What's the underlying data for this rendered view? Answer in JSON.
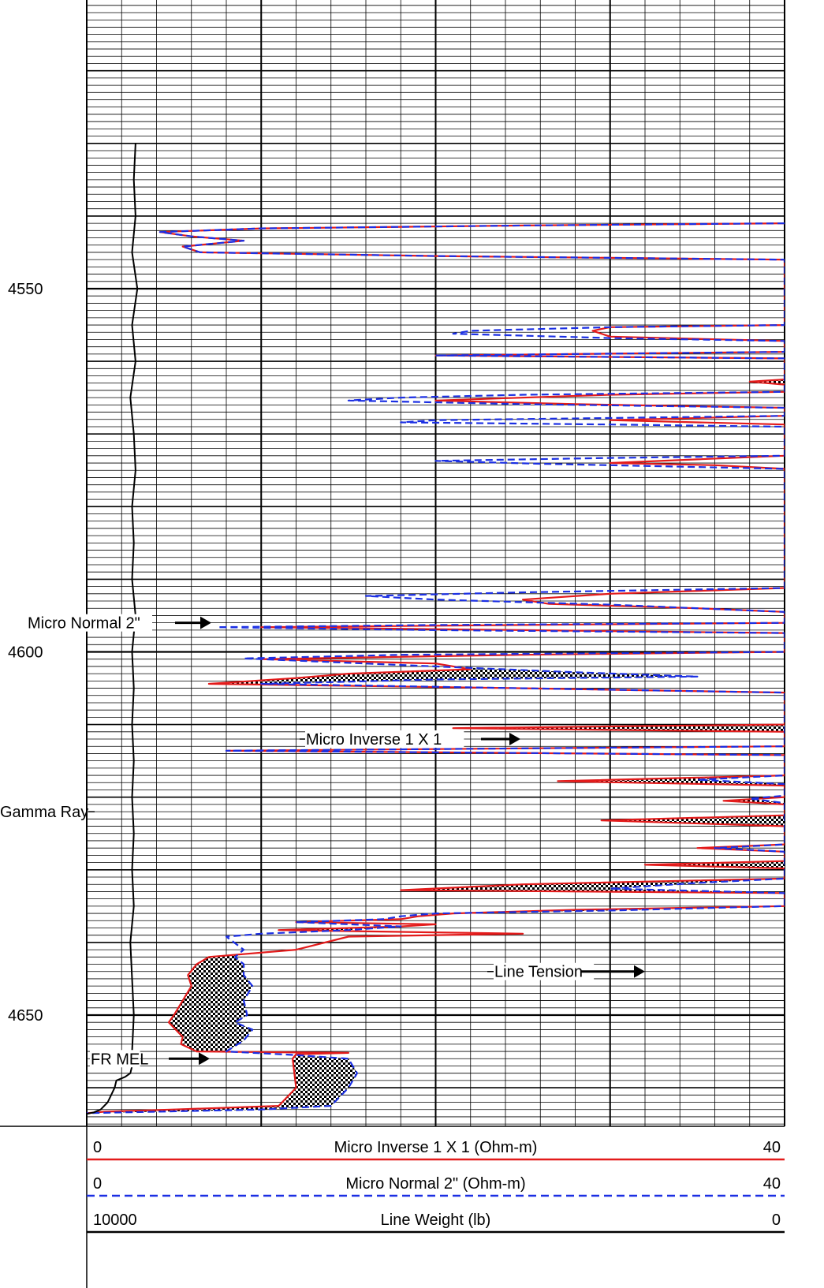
{
  "chart_data": {
    "type": "line",
    "title": "",
    "depth_axis": {
      "ticks": [
        4550,
        4600,
        4650
      ],
      "range": [
        4530,
        4665
      ]
    },
    "scales": [
      {
        "left": "0",
        "label": "Micro Inverse 1 X 1 (Ohm-m)",
        "right": "40",
        "color": "#e31b1b",
        "style": "solid"
      },
      {
        "left": "0",
        "label": "Micro Normal 2\" (Ohm-m)",
        "right": "40",
        "color": "#1b2fe3",
        "style": "dashed"
      },
      {
        "left": "10000",
        "label": "Line Weight (lb)",
        "right": "0",
        "color": "#000000",
        "style": "solid"
      }
    ],
    "annotations": [
      {
        "text": "Micro Normal 2\"",
        "depth": 4596
      },
      {
        "text": "Micro Inverse 1 X 1",
        "depth": 4612
      },
      {
        "text": "Gamma Ray",
        "depth": 4622
      },
      {
        "text": "Line Tension",
        "depth": 4644
      },
      {
        "text": "FR MEL",
        "depth": 4656
      }
    ],
    "series": [
      {
        "name": "Micro Inverse 1 X 1",
        "color": "#e31b1b",
        "points": [
          [
            4541,
            40
          ],
          [
            4541.3,
            25
          ],
          [
            4541.7,
            10
          ],
          [
            4542.2,
            4.2
          ],
          [
            4542.8,
            6
          ],
          [
            4543.4,
            9
          ],
          [
            4544.2,
            5.5
          ],
          [
            4545,
            6.5
          ],
          [
            4545.5,
            20
          ],
          [
            4546,
            40
          ],
          [
            4555,
            40
          ],
          [
            4555.3,
            30
          ],
          [
            4555.8,
            29
          ],
          [
            4556.6,
            30
          ],
          [
            4557.2,
            40
          ],
          [
            4558.7,
            40
          ],
          [
            4559.2,
            20
          ],
          [
            4559.6,
            40
          ],
          [
            4562.5,
            40
          ],
          [
            4562.8,
            38
          ],
          [
            4563.2,
            40
          ],
          [
            4564.2,
            40
          ],
          [
            4564.6,
            30
          ],
          [
            4565.4,
            20
          ],
          [
            4565.9,
            28
          ],
          [
            4566.4,
            40
          ],
          [
            4567.5,
            40
          ],
          [
            4568.1,
            30
          ],
          [
            4568.7,
            40
          ],
          [
            4573,
            40
          ],
          [
            4573.5,
            35
          ],
          [
            4574,
            30
          ],
          [
            4574.3,
            36
          ],
          [
            4574.8,
            40
          ],
          [
            4591.2,
            40
          ],
          [
            4592,
            30
          ],
          [
            4592.8,
            25
          ],
          [
            4593.4,
            26.5
          ],
          [
            4594,
            35
          ],
          [
            4594.5,
            40
          ],
          [
            4596,
            40
          ],
          [
            4596.3,
            25
          ],
          [
            4596.6,
            10
          ],
          [
            4597,
            25
          ],
          [
            4597.4,
            40
          ],
          [
            4600,
            40
          ],
          [
            4600.4,
            25
          ],
          [
            4601,
            10
          ],
          [
            4601.6,
            20
          ],
          [
            4602.4,
            22
          ],
          [
            4603,
            15
          ],
          [
            4603.6,
            12
          ],
          [
            4604.4,
            7
          ],
          [
            4605,
            25
          ],
          [
            4605.6,
            40
          ],
          [
            4610,
            40
          ],
          [
            4610.5,
            21
          ],
          [
            4611,
            40
          ],
          [
            4613,
            40
          ],
          [
            4613.6,
            8
          ],
          [
            4614.2,
            40
          ],
          [
            4617,
            40
          ],
          [
            4617.8,
            27
          ],
          [
            4618.4,
            40
          ],
          [
            4620,
            40
          ],
          [
            4620.5,
            36.5
          ],
          [
            4621,
            40
          ],
          [
            4622.5,
            40
          ],
          [
            4623.2,
            29.5
          ],
          [
            4624,
            40
          ],
          [
            4626.5,
            40
          ],
          [
            4627,
            35
          ],
          [
            4627.5,
            40
          ],
          [
            4628.8,
            40
          ],
          [
            4629.3,
            32
          ],
          [
            4629.8,
            40
          ],
          [
            4631.2,
            40
          ],
          [
            4632,
            25
          ],
          [
            4632.8,
            18
          ],
          [
            4633.2,
            40
          ],
          [
            4635,
            40
          ],
          [
            4635.5,
            28
          ],
          [
            4636,
            21
          ],
          [
            4636.4,
            19
          ],
          [
            4636.8,
            18
          ],
          [
            4637.2,
            12
          ],
          [
            4637.5,
            20
          ],
          [
            4637.8,
            18
          ],
          [
            4638.3,
            11
          ],
          [
            4638.8,
            25
          ],
          [
            4639.2,
            15
          ],
          [
            4641,
            12
          ],
          [
            4642,
            7
          ],
          [
            4643,
            6.3
          ],
          [
            4644.5,
            5.8
          ],
          [
            4646,
            6
          ],
          [
            4648,
            5.5
          ],
          [
            4650,
            5
          ],
          [
            4651,
            4.7
          ],
          [
            4653,
            5.5
          ],
          [
            4654,
            5.4
          ],
          [
            4655,
            6.3
          ],
          [
            4655.2,
            15
          ],
          [
            4655.4,
            12
          ],
          [
            4656,
            11.8
          ],
          [
            4660,
            12
          ],
          [
            4662.5,
            11
          ],
          [
            4663,
            5
          ],
          [
            4663.3,
            1
          ],
          [
            4663.5,
            0
          ]
        ]
      },
      {
        "name": "Micro Normal 2\"",
        "color": "#1b2fe3",
        "points": [
          [
            4541,
            40
          ],
          [
            4541.3,
            25
          ],
          [
            4541.7,
            10
          ],
          [
            4542.2,
            4.2
          ],
          [
            4542.8,
            6
          ],
          [
            4543.4,
            9
          ],
          [
            4544.2,
            5.5
          ],
          [
            4545,
            6.5
          ],
          [
            4545.5,
            20
          ],
          [
            4546,
            40
          ],
          [
            4555,
            40
          ],
          [
            4555.3,
            30
          ],
          [
            4555.8,
            22
          ],
          [
            4556.2,
            21
          ],
          [
            4556.8,
            30
          ],
          [
            4557.2,
            40
          ],
          [
            4558.7,
            40
          ],
          [
            4559.2,
            20
          ],
          [
            4559.6,
            40
          ],
          [
            4564.2,
            40
          ],
          [
            4564.6,
            25
          ],
          [
            4565,
            18
          ],
          [
            4565.4,
            15
          ],
          [
            4565.9,
            25
          ],
          [
            4566.4,
            40
          ],
          [
            4567.5,
            40
          ],
          [
            4568.1,
            20
          ],
          [
            4568.4,
            18
          ],
          [
            4568.7,
            30
          ],
          [
            4569,
            40
          ],
          [
            4573,
            40
          ],
          [
            4573.3,
            30
          ],
          [
            4573.7,
            20
          ],
          [
            4574.1,
            26
          ],
          [
            4574.8,
            40
          ],
          [
            4591.2,
            40
          ],
          [
            4591.8,
            25
          ],
          [
            4592.3,
            16
          ],
          [
            4592.8,
            20
          ],
          [
            4593.5,
            30
          ],
          [
            4594.5,
            40
          ],
          [
            4596,
            40
          ],
          [
            4596.3,
            20
          ],
          [
            4596.6,
            7.5
          ],
          [
            4597,
            20
          ],
          [
            4597.4,
            40
          ],
          [
            4600,
            40
          ],
          [
            4600.4,
            18
          ],
          [
            4600.9,
            9
          ],
          [
            4601.4,
            14
          ],
          [
            4602.2,
            22
          ],
          [
            4602.8,
            28
          ],
          [
            4603.4,
            35
          ],
          [
            4603.8,
            20
          ],
          [
            4604.4,
            10
          ],
          [
            4605,
            25
          ],
          [
            4605.6,
            40
          ],
          [
            4613,
            40
          ],
          [
            4613.6,
            8
          ],
          [
            4614.2,
            40
          ],
          [
            4617,
            40
          ],
          [
            4617.6,
            35
          ],
          [
            4618.2,
            40
          ],
          [
            4619.8,
            40
          ],
          [
            4620.2,
            38
          ],
          [
            4620.8,
            40
          ],
          [
            4626.5,
            40
          ],
          [
            4627,
            36
          ],
          [
            4627.5,
            40
          ],
          [
            4631.2,
            40
          ],
          [
            4631.8,
            35
          ],
          [
            4632.6,
            30
          ],
          [
            4633.2,
            40
          ],
          [
            4635,
            40
          ],
          [
            4635.6,
            30
          ],
          [
            4636,
            20
          ],
          [
            4636.4,
            18
          ],
          [
            4636.8,
            17
          ],
          [
            4637.2,
            12
          ],
          [
            4637.8,
            18
          ],
          [
            4638.3,
            15
          ],
          [
            4638.8,
            10
          ],
          [
            4639.2,
            8
          ],
          [
            4641,
            9
          ],
          [
            4642,
            8.5
          ],
          [
            4643,
            9
          ],
          [
            4644.5,
            9
          ],
          [
            4646,
            9.5
          ],
          [
            4648,
            9
          ],
          [
            4650,
            9.2
          ],
          [
            4651,
            8.5
          ],
          [
            4652,
            9.5
          ],
          [
            4653.5,
            9
          ],
          [
            4655,
            8
          ],
          [
            4655.5,
            12
          ],
          [
            4656,
            15
          ],
          [
            4658,
            15.5
          ],
          [
            4660,
            15
          ],
          [
            4662.5,
            14
          ],
          [
            4663,
            10
          ],
          [
            4663.5,
            0
          ]
        ]
      },
      {
        "name": "Line Tension",
        "color": "#000000",
        "points": [
          [
            4530,
            2.8
          ],
          [
            4535,
            2.7
          ],
          [
            4540,
            2.8
          ],
          [
            4545,
            2.6
          ],
          [
            4550,
            2.9
          ],
          [
            4555,
            2.6
          ],
          [
            4560,
            2.8
          ],
          [
            4565,
            2.5
          ],
          [
            4570,
            2.7
          ],
          [
            4575,
            2.8
          ],
          [
            4580,
            2.6
          ],
          [
            4585,
            2.7
          ],
          [
            4590,
            2.6
          ],
          [
            4595,
            2.8
          ],
          [
            4600,
            2.6
          ],
          [
            4605,
            2.7
          ],
          [
            4610,
            2.6
          ],
          [
            4615,
            2.7
          ],
          [
            4620,
            2.6
          ],
          [
            4625,
            2.7
          ],
          [
            4630,
            2.6
          ],
          [
            4635,
            2.7
          ],
          [
            4640,
            2.5
          ],
          [
            4645,
            2.6
          ],
          [
            4650,
            2.7
          ],
          [
            4655,
            2.6
          ],
          [
            4657,
            2.6
          ],
          [
            4658,
            2.5
          ],
          [
            4658.5,
            2.2
          ],
          [
            4659,
            1.7
          ],
          [
            4660,
            1.6
          ],
          [
            4661,
            1.4
          ],
          [
            4662,
            1.2
          ],
          [
            4663,
            0.8
          ],
          [
            4663.4,
            0.4
          ],
          [
            4663.6,
            0
          ]
        ]
      }
    ]
  }
}
